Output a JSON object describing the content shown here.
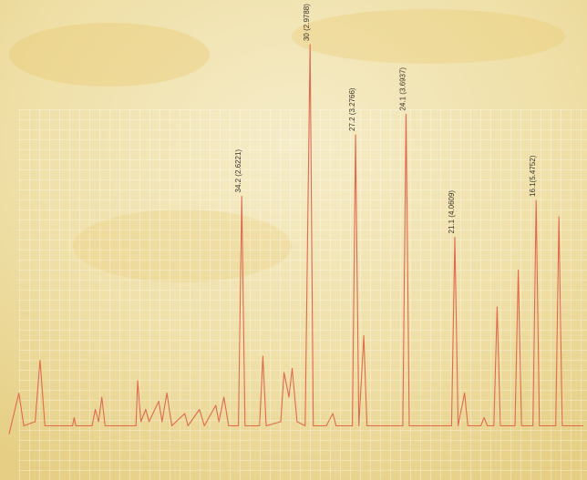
{
  "chart_data": {
    "type": "line",
    "xlim": [
      48.5,
      13.2
    ],
    "ylim": [
      0,
      100
    ],
    "color": "#e06a4e",
    "grid": true,
    "x": [
      48.5,
      47.9,
      47.6,
      46.9,
      46.6,
      46.3,
      44.6,
      44.5,
      44.4,
      43.4,
      43.2,
      43.0,
      42.8,
      42.6,
      40.7,
      40.6,
      40.4,
      40.1,
      39.9,
      39.3,
      39.1,
      38.8,
      38.5,
      37.7,
      37.5,
      36.8,
      36.5,
      35.8,
      35.6,
      35.3,
      35.0,
      34.4,
      34.2,
      34.0,
      33.1,
      32.9,
      32.7,
      31.8,
      31.6,
      31.3,
      31.1,
      30.8,
      30.3,
      30.0,
      29.8,
      29.0,
      28.6,
      28.4,
      27.4,
      27.2,
      27.0,
      26.7,
      26.5,
      25.5,
      24.3,
      24.1,
      23.9,
      22.6,
      21.3,
      21.1,
      20.9,
      20.5,
      20.3,
      19.5,
      19.3,
      19.1,
      18.7,
      18.5,
      18.3,
      17.4,
      17.2,
      17.0,
      16.3,
      16.1,
      15.9,
      14.9,
      14.7,
      14.5,
      13.2
    ],
    "values": [
      3,
      13,
      5,
      6,
      21,
      5,
      5,
      7,
      5,
      5,
      9,
      6,
      12,
      5,
      5,
      16,
      6,
      9,
      6,
      11,
      6,
      13,
      5,
      8,
      5,
      9,
      5,
      10,
      6,
      12,
      5,
      5,
      61,
      5,
      5,
      22,
      5,
      6,
      18,
      12,
      19,
      6,
      5,
      98,
      5,
      5,
      8,
      5,
      5,
      76,
      5,
      27,
      5,
      5,
      5,
      81,
      5,
      5,
      5,
      51,
      5,
      13,
      5,
      5,
      7,
      5,
      5,
      34,
      5,
      5,
      43,
      5,
      5,
      60,
      5,
      5,
      56,
      5,
      5
    ],
    "annotations": [
      {
        "x": 34.2,
        "text": "34.2 (2.6221)"
      },
      {
        "x": 30.0,
        "text": "30 (2.9788)"
      },
      {
        "x": 27.2,
        "text": "27.2 (3.2766)"
      },
      {
        "x": 24.1,
        "text": "24.1 (3.6937)"
      },
      {
        "x": 21.1,
        "text": "21.1 (4.0609)"
      },
      {
        "x": 16.1,
        "text": "16.1(5.4752)"
      }
    ]
  }
}
